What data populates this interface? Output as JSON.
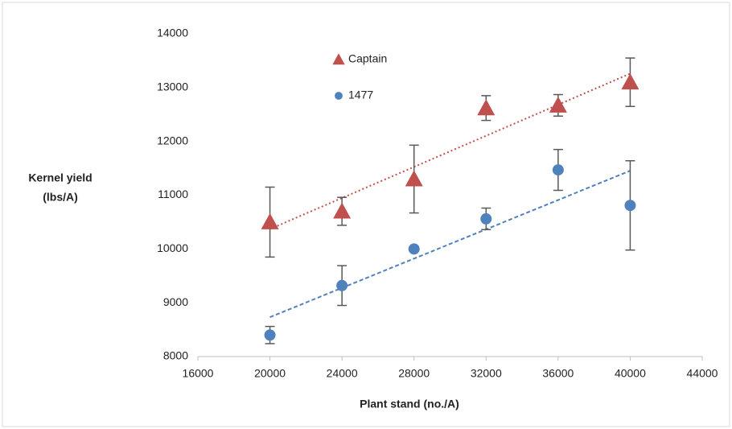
{
  "chart_data": {
    "type": "scatter",
    "x_label": "Plant stand (no./A)",
    "y_label": [
      "Kernel yield",
      "(lbs/A)"
    ],
    "xlim": [
      16000,
      44000
    ],
    "xticks": [
      16000,
      20000,
      24000,
      28000,
      32000,
      36000,
      40000,
      44000
    ],
    "ylim": [
      8000,
      14000
    ],
    "yticks": [
      8000,
      9000,
      10000,
      11000,
      12000,
      13000,
      14000
    ],
    "grid": false,
    "trendline": true,
    "legend": "top",
    "x": [
      20000,
      24000,
      28000,
      32000,
      36000,
      40000
    ],
    "series": [
      {
        "name": "Captain",
        "color": "#c0504d",
        "marker": "triangle",
        "values": [
          10500,
          10700,
          11300,
          12620,
          12670,
          13100
        ],
        "errors": [
          650,
          260,
          630,
          230,
          200,
          450
        ]
      },
      {
        "name": "1477",
        "color": "#4f81bd",
        "marker": "circle",
        "values": [
          8400,
          9320,
          10000,
          10560,
          11470,
          10810
        ],
        "errors": [
          160,
          370,
          0,
          200,
          380,
          830
        ]
      }
    ]
  }
}
